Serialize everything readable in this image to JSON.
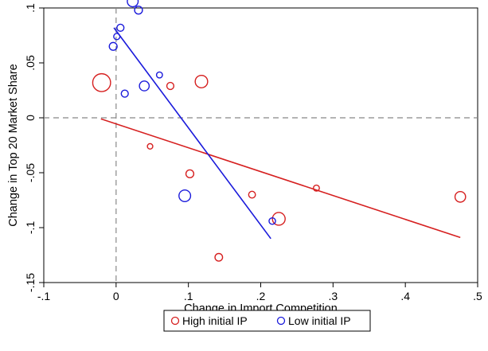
{
  "chart_data": {
    "type": "scatter",
    "title": "",
    "xlabel": "Change in Import Competition",
    "ylabel": "Change in Top 20 Market Share",
    "xlim": [
      -0.1,
      0.5
    ],
    "ylim": [
      -0.15,
      0.1
    ],
    "x_ticks": [
      {
        "value": -0.1,
        "label": "-.1"
      },
      {
        "value": 0,
        "label": "0"
      },
      {
        "value": 0.1,
        "label": ".1"
      },
      {
        "value": 0.2,
        "label": ".2"
      },
      {
        "value": 0.3,
        "label": ".3"
      },
      {
        "value": 0.4,
        "label": ".4"
      },
      {
        "value": 0.5,
        "label": ".5"
      }
    ],
    "y_ticks": [
      {
        "value": -0.15,
        "label": "-.15"
      },
      {
        "value": -0.1,
        "label": "-.1"
      },
      {
        "value": -0.05,
        "label": "-.05"
      },
      {
        "value": 0,
        "label": "0"
      },
      {
        "value": 0.05,
        "label": ".05"
      },
      {
        "value": 0.1,
        "label": ".1"
      }
    ],
    "reference_lines": {
      "x": 0,
      "y": 0,
      "style": "dashed",
      "color": "#888888"
    },
    "legend": {
      "position": "bottom",
      "bordered": true
    },
    "series": [
      {
        "name": "High initial IP",
        "color": "#d62020",
        "marker": "hollow-circle",
        "points": [
          {
            "x": -0.02,
            "y": 0.032,
            "weight": 3.3
          },
          {
            "x": 0.047,
            "y": -0.026,
            "weight": 1.0
          },
          {
            "x": 0.075,
            "y": 0.029,
            "weight": 1.3
          },
          {
            "x": 0.102,
            "y": -0.051,
            "weight": 1.45
          },
          {
            "x": 0.118,
            "y": 0.033,
            "weight": 2.3
          },
          {
            "x": 0.142,
            "y": -0.127,
            "weight": 1.4
          },
          {
            "x": 0.188,
            "y": -0.07,
            "weight": 1.25
          },
          {
            "x": 0.225,
            "y": -0.092,
            "weight": 2.35
          },
          {
            "x": 0.277,
            "y": -0.064,
            "weight": 1.1
          },
          {
            "x": 0.476,
            "y": -0.072,
            "weight": 1.95
          }
        ],
        "fit_line": {
          "x1": -0.021,
          "y1": -0.001,
          "x2": 0.476,
          "y2": -0.109
        }
      },
      {
        "name": "Low initial IP",
        "color": "#1a1adb",
        "marker": "hollow-circle",
        "points": [
          {
            "x": -0.004,
            "y": 0.065,
            "weight": 1.45
          },
          {
            "x": 0.001,
            "y": 0.074,
            "weight": 1.15
          },
          {
            "x": 0.006,
            "y": 0.082,
            "weight": 1.3
          },
          {
            "x": 0.012,
            "y": 0.022,
            "weight": 1.3
          },
          {
            "x": 0.023,
            "y": 0.106,
            "weight": 2.0
          },
          {
            "x": 0.031,
            "y": 0.098,
            "weight": 1.45
          },
          {
            "x": 0.039,
            "y": 0.029,
            "weight": 1.8
          },
          {
            "x": 0.06,
            "y": 0.039,
            "weight": 1.1
          },
          {
            "x": 0.095,
            "y": -0.071,
            "weight": 2.15
          },
          {
            "x": 0.216,
            "y": -0.094,
            "weight": 1.2
          }
        ],
        "fit_line": {
          "x1": -0.003,
          "y1": 0.082,
          "x2": 0.214,
          "y2": -0.11
        }
      }
    ]
  }
}
